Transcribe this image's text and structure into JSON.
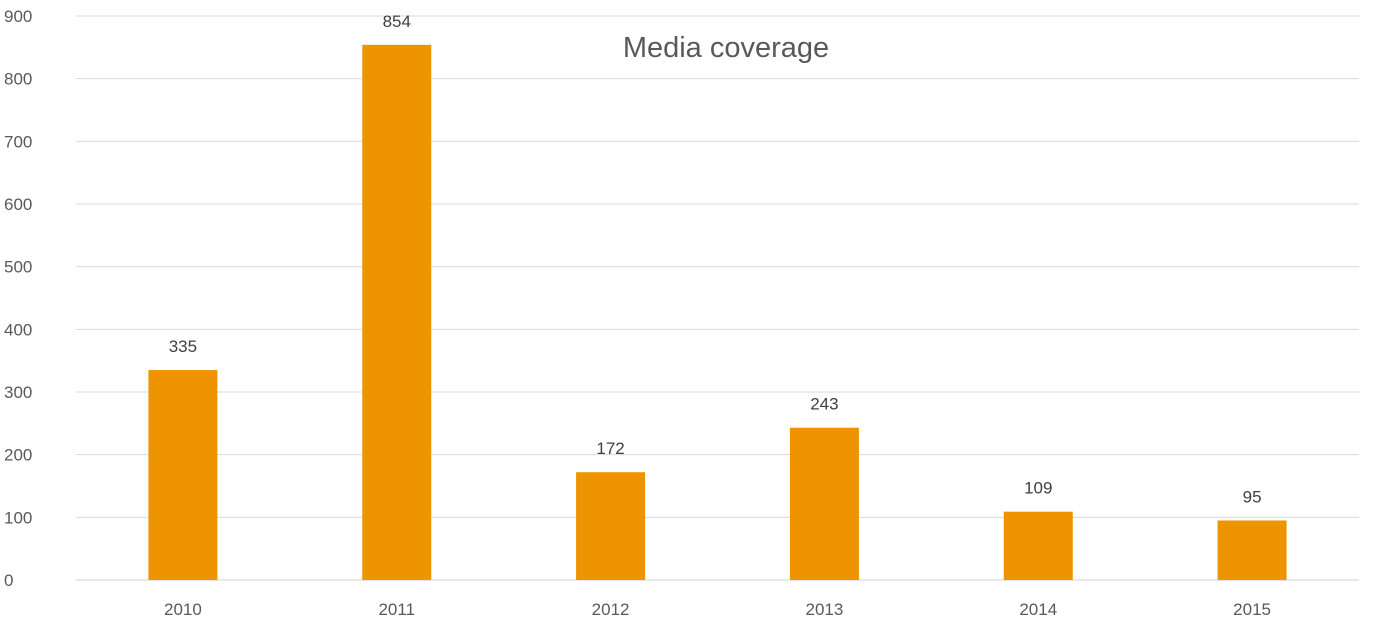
{
  "chart_data": {
    "type": "bar",
    "title": "Media coverage",
    "categories": [
      "2010",
      "2011",
      "2012",
      "2013",
      "2014",
      "2015"
    ],
    "values": [
      335,
      854,
      172,
      243,
      109,
      95
    ],
    "data_labels": [
      "335",
      "854",
      "172",
      "243",
      "109",
      "95"
    ],
    "y_ticks": [
      "0",
      "100",
      "200",
      "300",
      "400",
      "500",
      "600",
      "700",
      "800",
      "900"
    ],
    "ylim": [
      0,
      900
    ],
    "xlabel": "",
    "ylabel": "",
    "grid": true,
    "legend": "none",
    "colors": {
      "bar": "#ED9400",
      "grid": "#D9D9D9",
      "text": "#595959"
    }
  }
}
